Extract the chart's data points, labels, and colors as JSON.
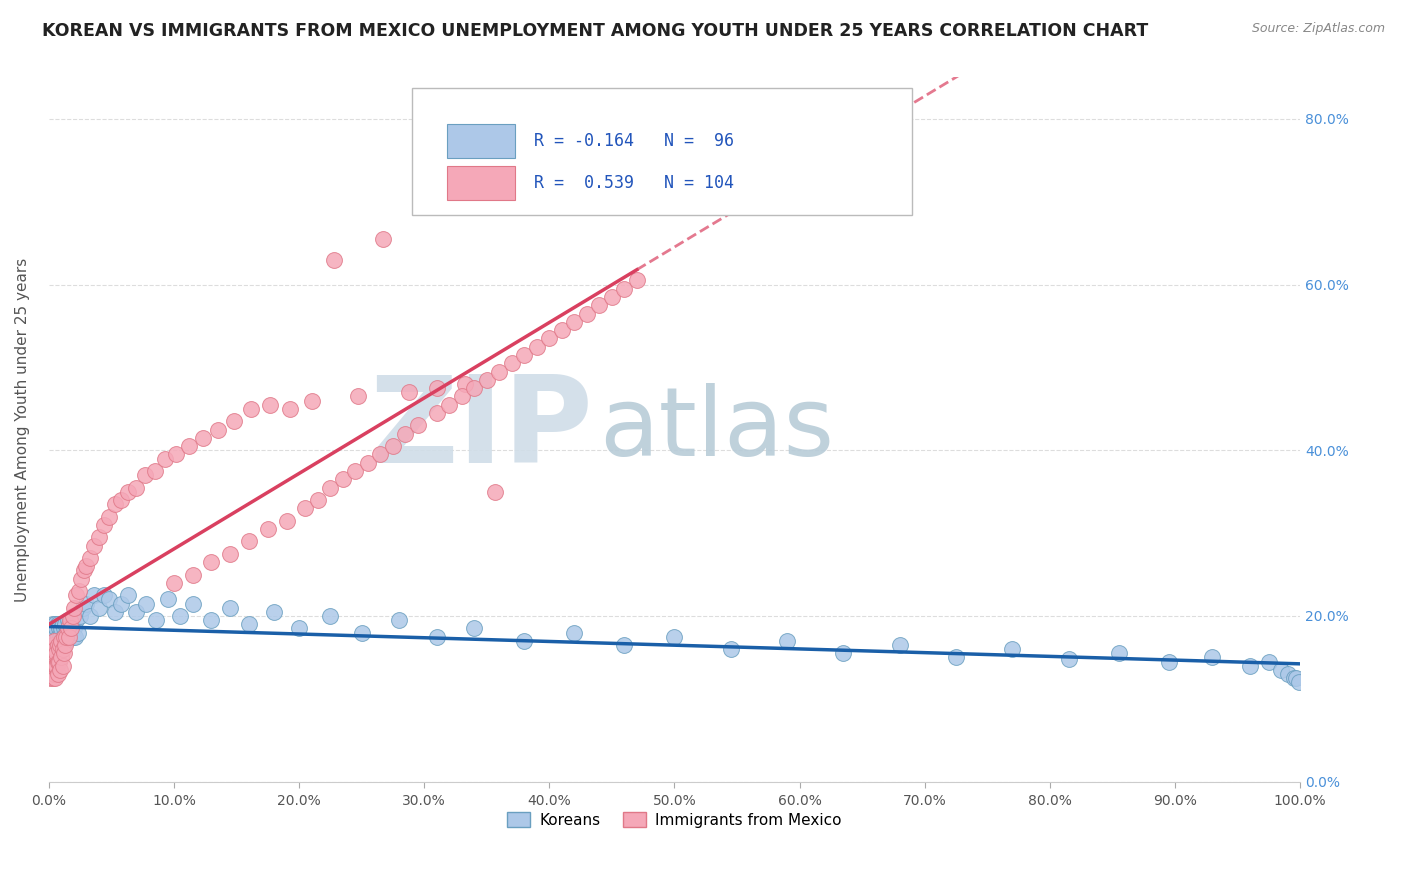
{
  "title": "KOREAN VS IMMIGRANTS FROM MEXICO UNEMPLOYMENT AMONG YOUTH UNDER 25 YEARS CORRELATION CHART",
  "source": "Source: ZipAtlas.com",
  "ylabel": "Unemployment Among Youth under 25 years",
  "xlim": [
    0.0,
    1.0
  ],
  "ylim": [
    0.0,
    0.85
  ],
  "xticks": [
    0.0,
    0.1,
    0.2,
    0.3,
    0.4,
    0.5,
    0.6,
    0.7,
    0.8,
    0.9,
    1.0
  ],
  "xticklabels": [
    "0.0%",
    "10.0%",
    "20.0%",
    "30.0%",
    "40.0%",
    "50.0%",
    "60.0%",
    "70.0%",
    "80.0%",
    "90.0%",
    "100.0%"
  ],
  "yticks": [
    0.0,
    0.2,
    0.4,
    0.6,
    0.8
  ],
  "yticklabels": [
    "0.0%",
    "20.0%",
    "40.0%",
    "60.0%",
    "80.0%"
  ],
  "korean_color": "#adc8e8",
  "korean_edge_color": "#6a9fc0",
  "mexico_color": "#f5a8b8",
  "mexico_edge_color": "#e07888",
  "korean_line_color": "#1a5fa8",
  "mexico_line_color": "#d94060",
  "watermark_ZIP_color": "#d0dde8",
  "watermark_atlas_color": "#b8ccd8",
  "R_korean": -0.164,
  "N_korean": 96,
  "R_mexico": 0.539,
  "N_mexico": 104,
  "bottom_legend_korean": "Koreans",
  "bottom_legend_mexico": "Immigrants from Mexico",
  "title_fontsize": 12.5,
  "axis_label_fontsize": 11,
  "tick_fontsize": 10,
  "legend_fontsize": 12,
  "background_color": "#ffffff",
  "grid_color": "#dddddd",
  "right_ytick_color": "#4a90d9",
  "korean_scatter_x": [
    0.001,
    0.001,
    0.002,
    0.002,
    0.002,
    0.003,
    0.003,
    0.003,
    0.003,
    0.004,
    0.004,
    0.004,
    0.005,
    0.005,
    0.005,
    0.006,
    0.006,
    0.006,
    0.007,
    0.007,
    0.007,
    0.008,
    0.008,
    0.008,
    0.009,
    0.009,
    0.01,
    0.01,
    0.01,
    0.011,
    0.011,
    0.012,
    0.012,
    0.013,
    0.013,
    0.014,
    0.014,
    0.015,
    0.015,
    0.016,
    0.016,
    0.017,
    0.018,
    0.019,
    0.02,
    0.021,
    0.022,
    0.023,
    0.025,
    0.027,
    0.03,
    0.033,
    0.036,
    0.04,
    0.044,
    0.048,
    0.053,
    0.058,
    0.063,
    0.07,
    0.078,
    0.086,
    0.095,
    0.105,
    0.115,
    0.13,
    0.145,
    0.16,
    0.18,
    0.2,
    0.225,
    0.25,
    0.28,
    0.31,
    0.34,
    0.38,
    0.42,
    0.46,
    0.5,
    0.545,
    0.59,
    0.635,
    0.68,
    0.725,
    0.77,
    0.815,
    0.855,
    0.895,
    0.93,
    0.96,
    0.975,
    0.985,
    0.99,
    0.995,
    0.997,
    0.999
  ],
  "korean_scatter_y": [
    0.175,
    0.155,
    0.185,
    0.165,
    0.14,
    0.17,
    0.19,
    0.155,
    0.175,
    0.16,
    0.185,
    0.145,
    0.175,
    0.16,
    0.19,
    0.165,
    0.185,
    0.155,
    0.175,
    0.165,
    0.19,
    0.17,
    0.185,
    0.155,
    0.175,
    0.165,
    0.18,
    0.165,
    0.185,
    0.175,
    0.19,
    0.17,
    0.185,
    0.175,
    0.19,
    0.17,
    0.18,
    0.175,
    0.195,
    0.175,
    0.19,
    0.18,
    0.195,
    0.175,
    0.185,
    0.175,
    0.195,
    0.18,
    0.2,
    0.21,
    0.215,
    0.2,
    0.225,
    0.21,
    0.225,
    0.22,
    0.205,
    0.215,
    0.225,
    0.205,
    0.215,
    0.195,
    0.22,
    0.2,
    0.215,
    0.195,
    0.21,
    0.19,
    0.205,
    0.185,
    0.2,
    0.18,
    0.195,
    0.175,
    0.185,
    0.17,
    0.18,
    0.165,
    0.175,
    0.16,
    0.17,
    0.155,
    0.165,
    0.15,
    0.16,
    0.148,
    0.155,
    0.145,
    0.15,
    0.14,
    0.145,
    0.135,
    0.13,
    0.125,
    0.125,
    0.12
  ],
  "mexico_scatter_x": [
    0.001,
    0.001,
    0.002,
    0.002,
    0.002,
    0.003,
    0.003,
    0.003,
    0.004,
    0.004,
    0.004,
    0.005,
    0.005,
    0.005,
    0.006,
    0.006,
    0.007,
    0.007,
    0.007,
    0.008,
    0.008,
    0.009,
    0.009,
    0.01,
    0.01,
    0.011,
    0.011,
    0.012,
    0.012,
    0.013,
    0.014,
    0.015,
    0.016,
    0.017,
    0.018,
    0.019,
    0.02,
    0.022,
    0.024,
    0.026,
    0.028,
    0.03,
    0.033,
    0.036,
    0.04,
    0.044,
    0.048,
    0.053,
    0.058,
    0.063,
    0.07,
    0.077,
    0.085,
    0.093,
    0.102,
    0.112,
    0.123,
    0.135,
    0.148,
    0.162,
    0.177,
    0.193,
    0.21,
    0.228,
    0.247,
    0.267,
    0.288,
    0.31,
    0.333,
    0.357,
    0.1,
    0.115,
    0.13,
    0.145,
    0.16,
    0.175,
    0.19,
    0.205,
    0.215,
    0.225,
    0.235,
    0.245,
    0.255,
    0.265,
    0.275,
    0.285,
    0.295,
    0.31,
    0.32,
    0.33,
    0.34,
    0.35,
    0.36,
    0.37,
    0.38,
    0.39,
    0.4,
    0.41,
    0.42,
    0.43,
    0.44,
    0.45,
    0.46,
    0.47
  ],
  "mexico_scatter_y": [
    0.145,
    0.125,
    0.16,
    0.135,
    0.155,
    0.125,
    0.165,
    0.145,
    0.155,
    0.13,
    0.17,
    0.14,
    0.16,
    0.125,
    0.155,
    0.14,
    0.165,
    0.145,
    0.13,
    0.16,
    0.145,
    0.165,
    0.135,
    0.17,
    0.15,
    0.16,
    0.14,
    0.175,
    0.155,
    0.165,
    0.175,
    0.185,
    0.175,
    0.195,
    0.185,
    0.2,
    0.21,
    0.225,
    0.23,
    0.245,
    0.255,
    0.26,
    0.27,
    0.285,
    0.295,
    0.31,
    0.32,
    0.335,
    0.34,
    0.35,
    0.355,
    0.37,
    0.375,
    0.39,
    0.395,
    0.405,
    0.415,
    0.425,
    0.435,
    0.45,
    0.455,
    0.45,
    0.46,
    0.63,
    0.465,
    0.655,
    0.47,
    0.475,
    0.48,
    0.35,
    0.24,
    0.25,
    0.265,
    0.275,
    0.29,
    0.305,
    0.315,
    0.33,
    0.34,
    0.355,
    0.365,
    0.375,
    0.385,
    0.395,
    0.405,
    0.42,
    0.43,
    0.445,
    0.455,
    0.465,
    0.475,
    0.485,
    0.495,
    0.505,
    0.515,
    0.525,
    0.535,
    0.545,
    0.555,
    0.565,
    0.575,
    0.585,
    0.595,
    0.605
  ]
}
